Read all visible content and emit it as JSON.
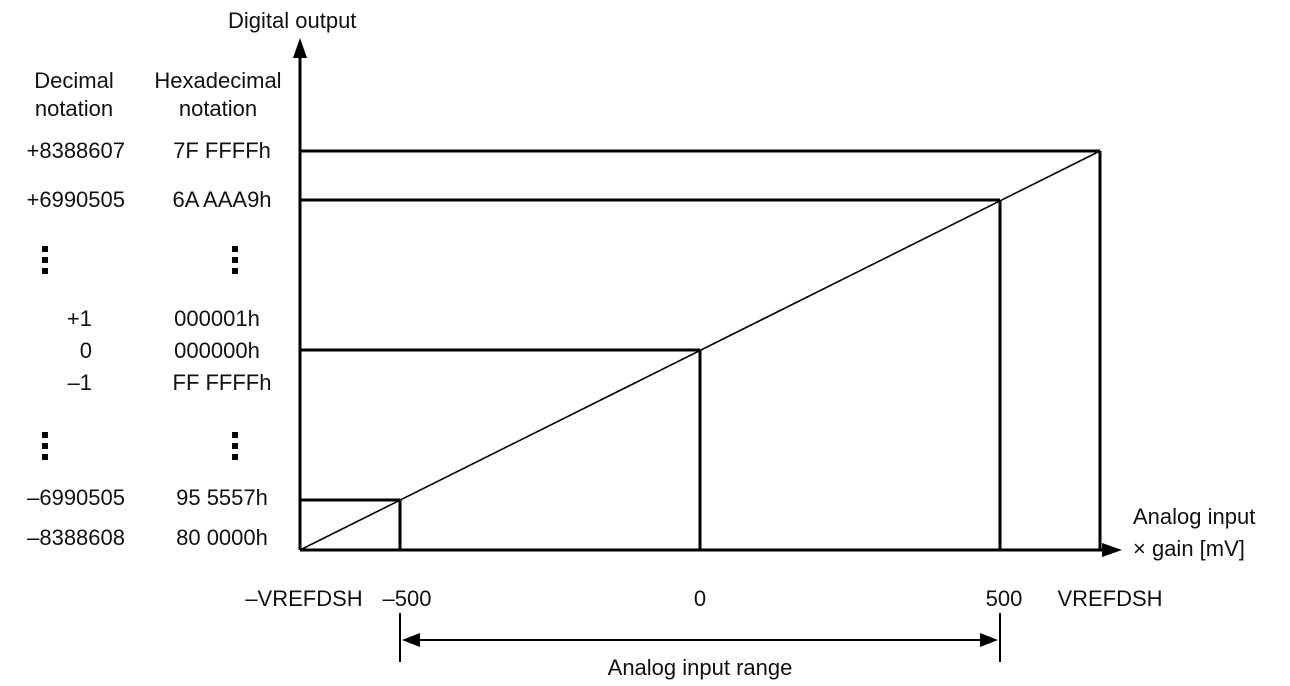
{
  "y_axis": {
    "title": "Digital output"
  },
  "x_axis": {
    "title_line1": "Analog input",
    "title_line2": "× gain [mV]"
  },
  "columns": {
    "decimal_header_line1": "Decimal",
    "decimal_header_line2": "notation",
    "hex_header_line1": "Hexadecimal",
    "hex_header_line2": "notation"
  },
  "rows": [
    {
      "decimal": "+8388607",
      "hex": "7F FFFFh"
    },
    {
      "decimal": "+6990505",
      "hex": "6A AAA9h"
    },
    {
      "decimal": "+1",
      "hex": "000001h"
    },
    {
      "decimal": "0",
      "hex": "000000h"
    },
    {
      "decimal": "–1",
      "hex": "FF FFFFh"
    },
    {
      "decimal": "–6990505",
      "hex": "95 5557h"
    },
    {
      "decimal": "–8388608",
      "hex": "80 0000h"
    }
  ],
  "x_ticks": {
    "neg_vref": "–VREFDSH",
    "neg_500": "–500",
    "zero": "0",
    "pos_500": "500",
    "pos_vref": "VREFDSH"
  },
  "range": {
    "label": "Analog input range"
  }
}
